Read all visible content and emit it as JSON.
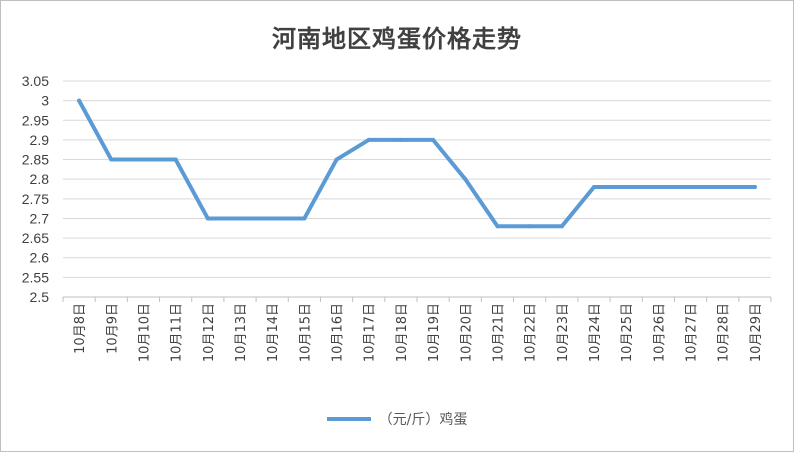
{
  "chart_data": {
    "type": "line",
    "title": "河南地区鸡蛋价格走势",
    "xlabel": "",
    "ylabel": "",
    "categories": [
      "10月8日",
      "10月9日",
      "10月10日",
      "10月11日",
      "10月12日",
      "10月13日",
      "10月14日",
      "10月15日",
      "10月16日",
      "10月17日",
      "10月18日",
      "10月19日",
      "10月20日",
      "10月21日",
      "10月22日",
      "10月23日",
      "10月24日",
      "10月25日",
      "10月26日",
      "10月27日",
      "10月28日",
      "10月29日"
    ],
    "series": [
      {
        "name": "（元/斤）鸡蛋",
        "values": [
          3.0,
          2.85,
          2.85,
          2.85,
          2.7,
          2.7,
          2.7,
          2.7,
          2.85,
          2.9,
          2.9,
          2.9,
          2.8,
          2.68,
          2.68,
          2.68,
          2.78,
          2.78,
          2.78,
          2.78,
          2.78,
          2.78
        ]
      }
    ],
    "yticks": [
      "2.5",
      "2.55",
      "2.6",
      "2.65",
      "2.7",
      "2.75",
      "2.8",
      "2.85",
      "2.9",
      "2.95",
      "3",
      "3.05"
    ],
    "ylim": [
      2.5,
      3.05
    ],
    "grid": true,
    "legend_position": "bottom",
    "line_color": "#5b9bd5"
  }
}
